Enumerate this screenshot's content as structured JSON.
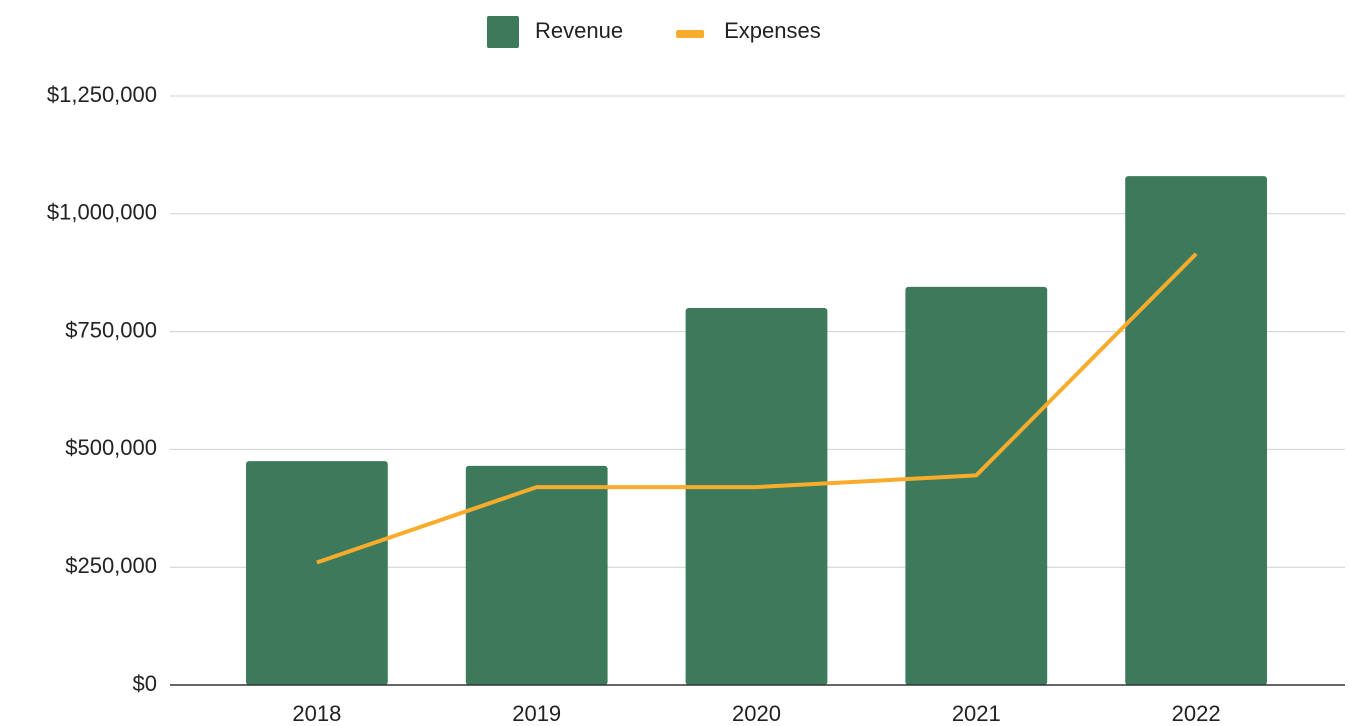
{
  "chart_data": {
    "type": "bar",
    "categories": [
      "2018",
      "2019",
      "2020",
      "2021",
      "2022"
    ],
    "series": [
      {
        "name": "Revenue",
        "type": "bar",
        "color": "#3d7a5c",
        "values": [
          475000,
          465000,
          800000,
          845000,
          1080000
        ]
      },
      {
        "name": "Expenses",
        "type": "line",
        "color": "#f9ab2b",
        "values": [
          260000,
          420000,
          420000,
          445000,
          915000
        ]
      }
    ],
    "ylim": [
      0,
      1250000
    ],
    "yticks": [
      {
        "value": 0,
        "label": "$0"
      },
      {
        "value": 250000,
        "label": "$250,000"
      },
      {
        "value": 500000,
        "label": "$500,000"
      },
      {
        "value": 750000,
        "label": "$750,000"
      },
      {
        "value": 1000000,
        "label": "$1,000,000"
      },
      {
        "value": 1250000,
        "label": "$1,250,000"
      }
    ],
    "grid": true,
    "legend": "top"
  }
}
